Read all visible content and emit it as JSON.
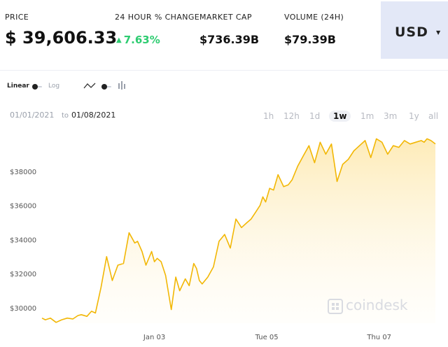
{
  "header": {
    "price_label": "PRICE",
    "price_value": "$ 39,606.33",
    "change_label": "24 HOUR % CHANGE",
    "change_value": "7.63%",
    "marketcap_label": "MARKET CAP",
    "marketcap_value": "$736.39B",
    "volume_label": "VOLUME (24H)",
    "volume_value": "$79.39B",
    "currency": "USD"
  },
  "controls": {
    "scale_linear": "Linear",
    "scale_log": "Log"
  },
  "date_range": {
    "from": "01/01/2021",
    "to_word": "to",
    "to": "01/08/2021"
  },
  "range_buttons": [
    "1h",
    "12h",
    "1d",
    "1w",
    "1m",
    "3m",
    "1y",
    "all"
  ],
  "range_active": "1w",
  "watermark": "coindesk",
  "colors": {
    "line": "#f2b705",
    "fill_top": "#fde9b0",
    "positive": "#2ecc71",
    "currency_bg": "#e3e8f7"
  },
  "chart_data": {
    "type": "area",
    "title": "",
    "xlabel": "",
    "ylabel": "",
    "ylim": [
      29100,
      40000
    ],
    "xlim": [
      0,
      7
    ],
    "y_ticks": [
      30000,
      32000,
      34000,
      36000,
      38000
    ],
    "y_tick_labels": [
      "$30000",
      "$32000",
      "$34000",
      "$36000",
      "$38000"
    ],
    "x_ticks": [
      2,
      4,
      6
    ],
    "x_tick_labels": [
      "Jan 03",
      "Tue 05",
      "Thu 07"
    ],
    "grid": false,
    "series": [
      {
        "x": [
          0.0,
          0.06,
          0.15,
          0.25,
          0.35,
          0.45,
          0.55,
          0.64,
          0.7,
          0.8,
          0.88,
          0.95,
          1.05,
          1.15,
          1.25,
          1.35,
          1.45,
          1.55,
          1.65,
          1.7,
          1.78,
          1.85,
          1.95,
          2.0,
          2.05,
          2.12,
          2.2,
          2.3,
          2.38,
          2.45,
          2.55,
          2.62,
          2.7,
          2.75,
          2.8,
          2.85,
          2.95,
          3.05,
          3.15,
          3.25,
          3.35,
          3.45,
          3.55,
          3.65,
          3.72,
          3.8,
          3.88,
          3.93,
          3.98,
          4.05,
          4.12,
          4.2,
          4.3,
          4.38,
          4.45,
          4.55,
          4.65,
          4.75,
          4.85,
          4.95,
          5.05,
          5.15,
          5.25,
          5.35,
          5.45,
          5.55,
          5.65,
          5.75,
          5.85,
          5.95,
          6.05,
          6.15,
          6.25,
          6.35,
          6.45,
          6.55,
          6.65,
          6.75,
          6.8,
          6.85,
          6.92,
          7.0
        ],
        "y": [
          29400,
          29300,
          29400,
          29150,
          29300,
          29400,
          29350,
          29550,
          29600,
          29500,
          29800,
          29700,
          31200,
          33000,
          31600,
          32500,
          32600,
          34400,
          33800,
          33900,
          33300,
          32500,
          33300,
          32700,
          32900,
          32700,
          31900,
          29900,
          31800,
          31000,
          31700,
          31300,
          32600,
          32300,
          31600,
          31400,
          31800,
          32400,
          33900,
          34300,
          33500,
          35200,
          34700,
          35000,
          35200,
          35600,
          36000,
          36500,
          36200,
          37000,
          36900,
          37800,
          37100,
          37200,
          37500,
          38300,
          38900,
          39500,
          38500,
          39700,
          39000,
          39600,
          37400,
          38400,
          38700,
          39200,
          39500,
          39800,
          38800,
          39900,
          39700,
          39000,
          39500,
          39400,
          39800,
          39600,
          39700,
          39800,
          39700,
          39900,
          39800,
          39600
        ],
        "values_note": ""
      }
    ]
  }
}
